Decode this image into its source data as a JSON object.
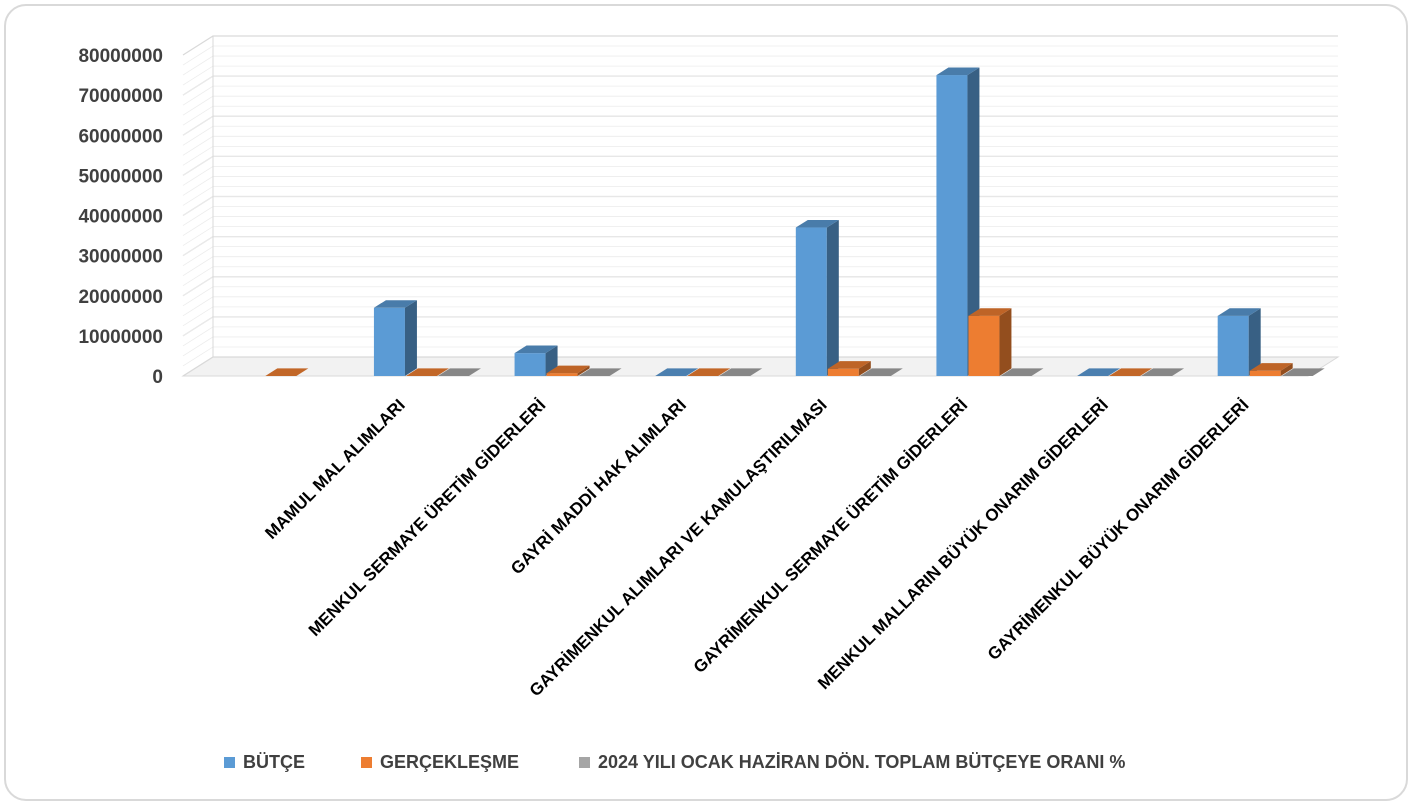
{
  "chart_data": {
    "type": "bar",
    "categories": [
      "",
      "MAMUL MAL ALIMLARI",
      "MENKUL SERMAYE ÜRETİM GİDERLERİ",
      "GAYRİ MADDİ HAK ALIMLARI",
      "GAYRİMENKUL ALIMLARI VE KAMULAŞTIRILMASI",
      "GAYRİMENKUL SERMAYE ÜRETİM GİDERLERİ",
      "MENKUL MALLARIN BÜYÜK ONARIM GİDERLERİ",
      "GAYRİMENKUL BÜYÜK ONARIM GİDERLERİ"
    ],
    "series": [
      {
        "name": "BÜTÇE",
        "values": [
          null,
          17000000,
          5700000,
          0,
          37000000,
          75000000,
          0,
          15000000
        ],
        "color": "#5b9bd5"
      },
      {
        "name": "GERÇEKLEŞME",
        "values": [
          0,
          0,
          700000,
          0,
          1800000,
          15000000,
          0,
          1300000
        ],
        "color": "#ed7d31"
      },
      {
        "name": "2024 YILI OCAK  HAZİRAN DÖN. TOPLAM BÜTÇEYE  ORANI %",
        "values": [
          null,
          0,
          0,
          0,
          0,
          0,
          0,
          0
        ],
        "color": "#a5a5a5"
      }
    ],
    "yticks": [
      "0",
      "10000000",
      "20000000",
      "30000000",
      "40000000",
      "50000000",
      "60000000",
      "70000000",
      "80000000"
    ],
    "ylim": [
      0,
      80000000
    ],
    "title": "",
    "xlabel": "",
    "ylabel": "",
    "grid": true,
    "legend_position": "bottom",
    "view": "3d-clustered-column"
  }
}
